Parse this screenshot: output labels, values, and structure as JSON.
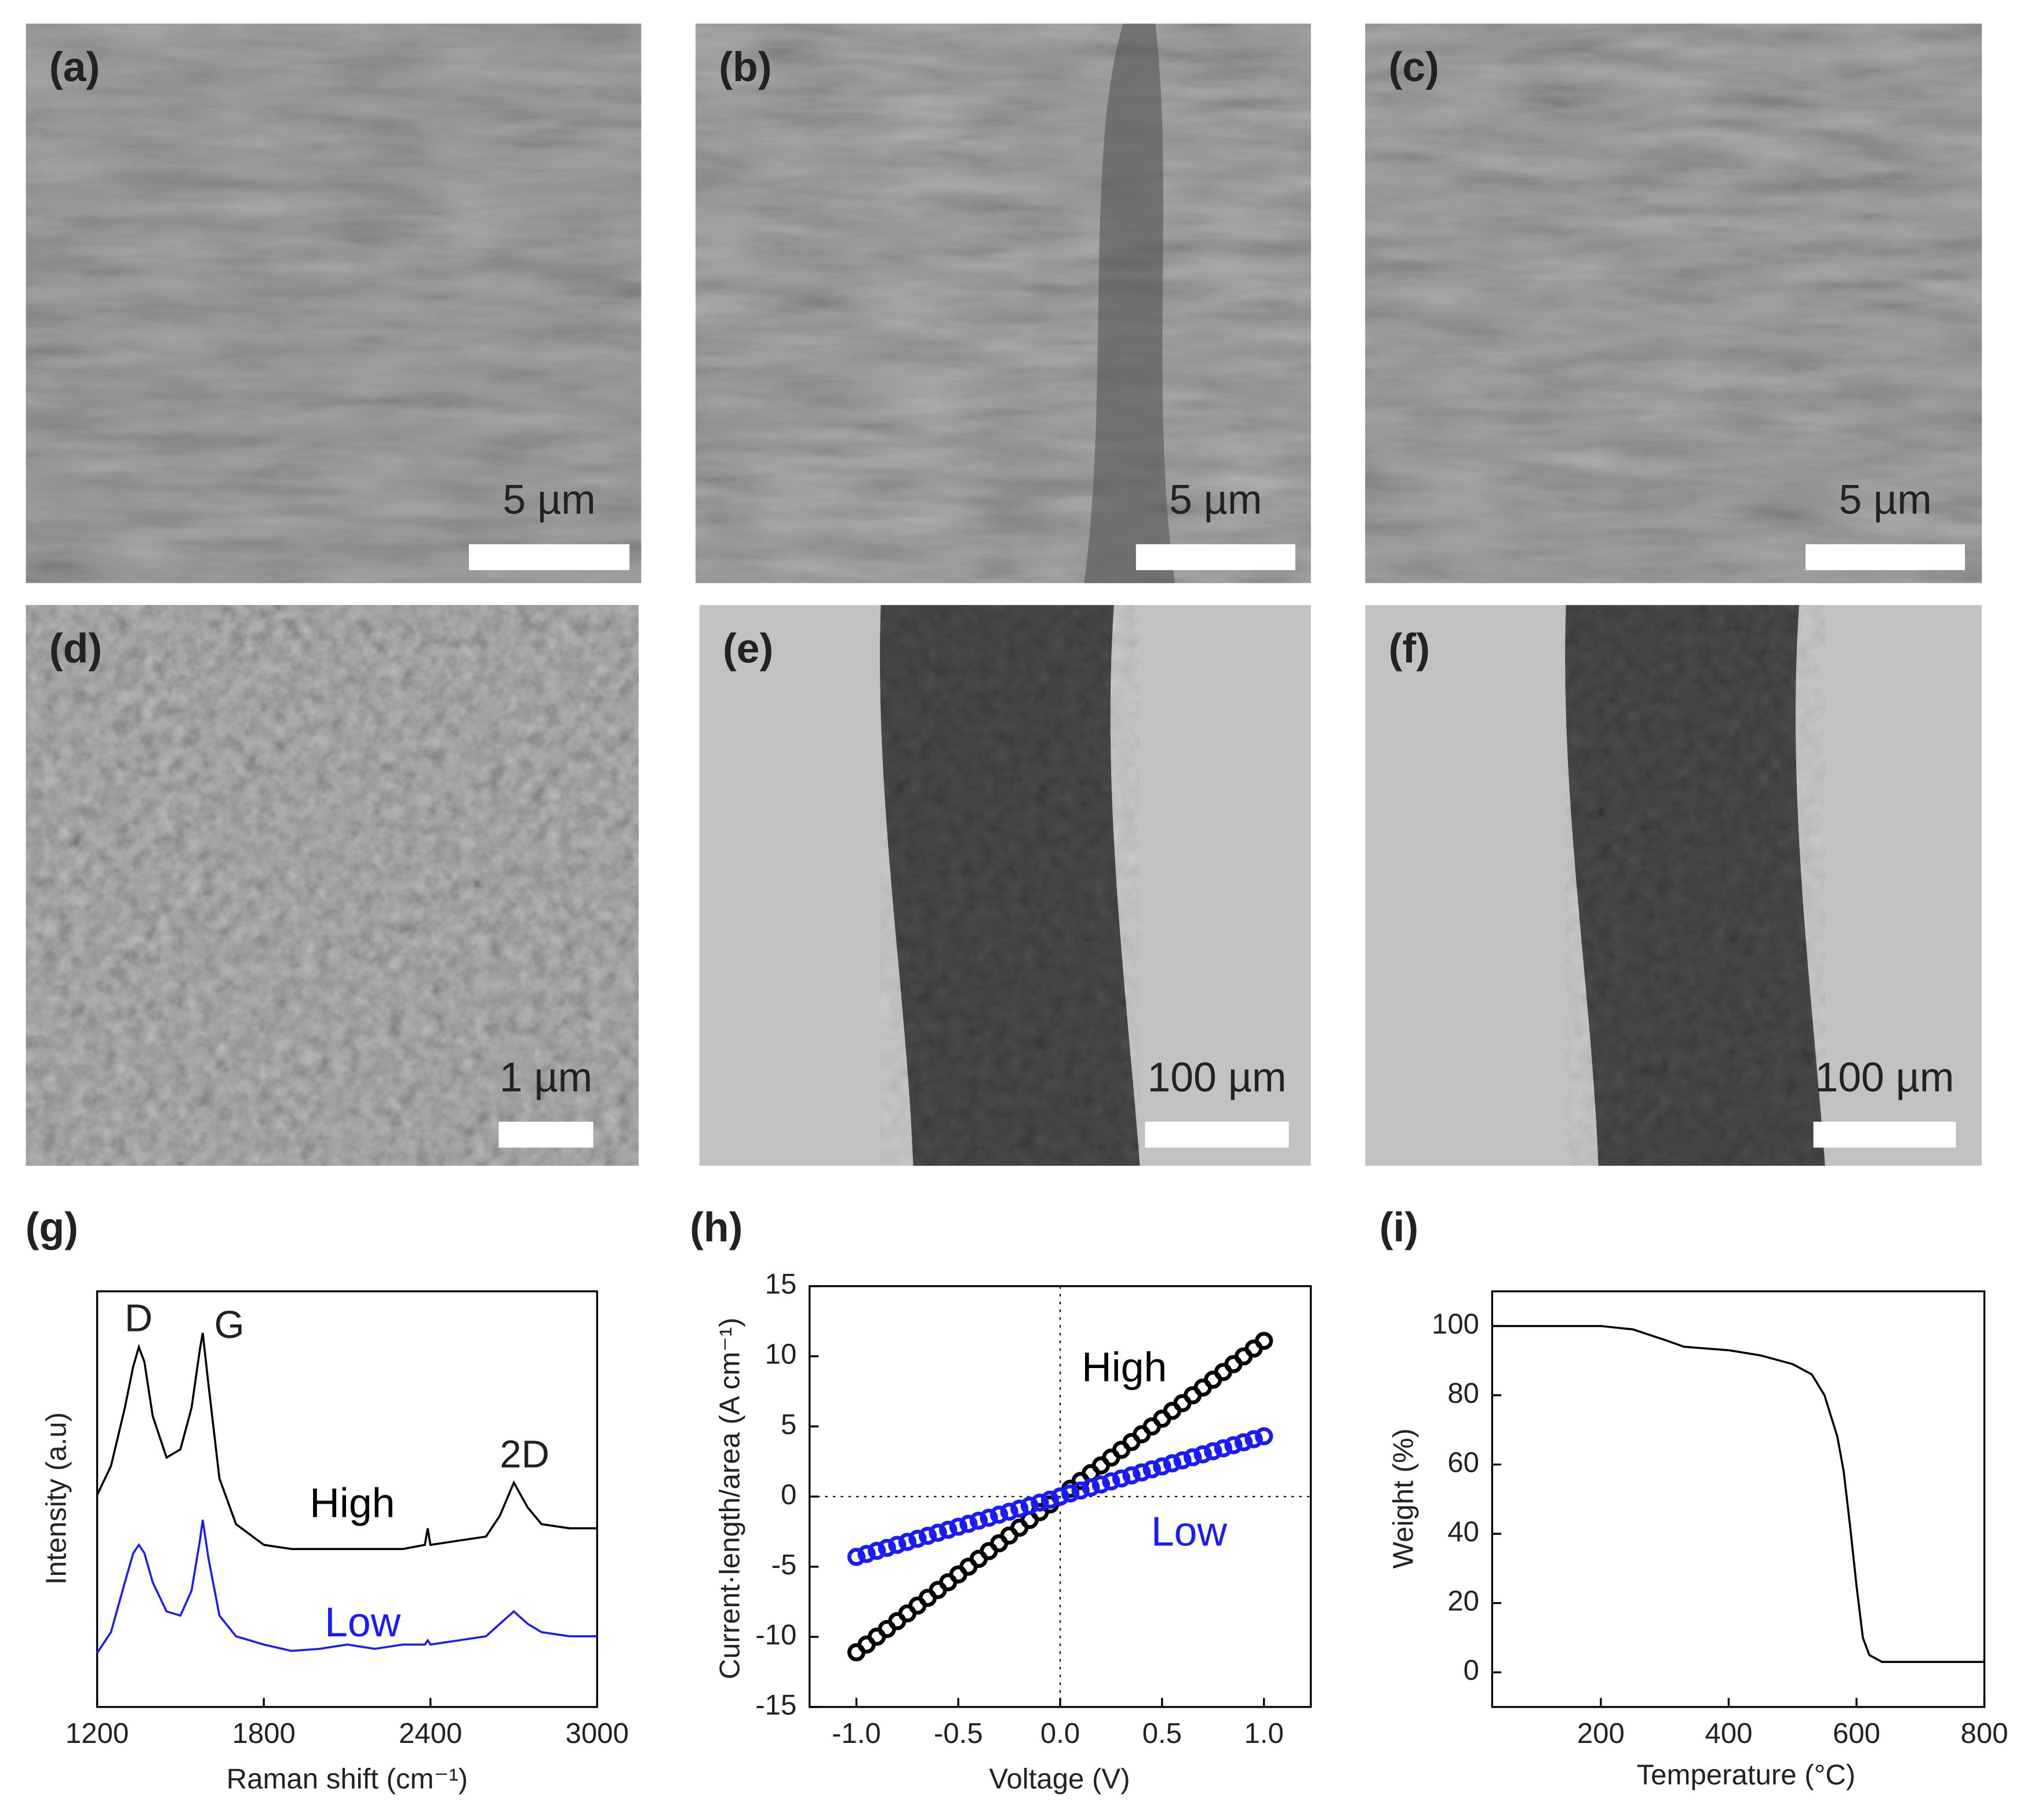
{
  "panels": [
    {
      "label": "(a)",
      "scale_bar": "5 µm"
    },
    {
      "label": "(b)",
      "scale_bar": "5 µm"
    },
    {
      "label": "(c)",
      "scale_bar": "5 µm"
    },
    {
      "label": "(d)",
      "scale_bar": "1 µm"
    },
    {
      "label": "(e)",
      "scale_bar": "100 µm"
    },
    {
      "label": "(f)",
      "scale_bar": "100 µm"
    }
  ],
  "chart_data": [
    {
      "type": "line",
      "panel_label": "(g)",
      "x_label": "Raman shift (cm⁻¹)",
      "y_label": "Intensity (a.u)",
      "annotations": [
        "D",
        "G",
        "2D"
      ],
      "x": [
        1200,
        1250,
        1300,
        1330,
        1350,
        1370,
        1400,
        1450,
        1500,
        1540,
        1570,
        1580,
        1600,
        1640,
        1700,
        1800,
        1900,
        2000,
        2100,
        2200,
        2300,
        2380,
        2390,
        2400,
        2500,
        2600,
        2650,
        2700,
        2750,
        2800,
        2900,
        3000
      ],
      "series": [
        {
          "name": "High",
          "color": "#000000",
          "values": [
            51,
            58,
            72,
            82,
            86.6,
            83,
            70,
            60,
            62,
            72,
            86,
            90,
            78,
            55,
            44,
            39,
            38,
            38,
            38,
            38,
            38,
            39,
            43,
            39,
            40,
            41,
            46,
            54,
            48,
            44,
            43,
            43
          ]
        },
        {
          "name": "Low",
          "color": "#1a1aff",
          "values": [
            13,
            18,
            30,
            37,
            39,
            37,
            30,
            23,
            22,
            28,
            40,
            45,
            36,
            22,
            17,
            15,
            13.5,
            14,
            15,
            14,
            15,
            15,
            16,
            15,
            16,
            17,
            20,
            23,
            20,
            18,
            17,
            17
          ]
        }
      ],
      "xlim": [
        1200,
        3000
      ],
      "xticks": [
        1200,
        1800,
        2400,
        3000
      ],
      "ylim": [
        0,
        100
      ]
    },
    {
      "type": "scatter",
      "panel_label": "(h)",
      "x_label": "Voltage (V)",
      "y_label": "Current·length/area (A cm⁻¹)",
      "x": [
        -1,
        -0.95,
        -0.9,
        -0.85,
        -0.8,
        -0.75,
        -0.7,
        -0.65,
        -0.6,
        -0.55,
        -0.5,
        -0.45,
        -0.4,
        -0.35,
        -0.3,
        -0.25,
        -0.2,
        -0.15,
        -0.1,
        -0.05,
        0,
        0.05,
        0.1,
        0.15,
        0.2,
        0.25,
        0.3,
        0.35,
        0.4,
        0.45,
        0.5,
        0.55,
        0.6,
        0.65,
        0.7,
        0.75,
        0.8,
        0.85,
        0.9,
        0.95,
        1
      ],
      "series": [
        {
          "name": "High",
          "color": "#000000",
          "values": [
            -11.1,
            -10.55,
            -9.99,
            -9.44,
            -8.88,
            -8.33,
            -7.77,
            -7.22,
            -6.66,
            -6.11,
            -5.55,
            -5.0,
            -4.44,
            -3.89,
            -3.33,
            -2.78,
            -2.22,
            -1.67,
            -1.11,
            -0.56,
            0,
            0.56,
            1.11,
            1.67,
            2.22,
            2.78,
            3.33,
            3.89,
            4.44,
            5.0,
            5.55,
            6.11,
            6.66,
            7.22,
            7.77,
            8.33,
            8.88,
            9.44,
            9.99,
            10.55,
            11.1
          ]
        },
        {
          "name": "Low",
          "color": "#1a1aff",
          "values": [
            -4.3,
            -4.09,
            -3.87,
            -3.66,
            -3.44,
            -3.23,
            -3.01,
            -2.8,
            -2.58,
            -2.37,
            -2.15,
            -1.94,
            -1.72,
            -1.51,
            -1.29,
            -1.08,
            -0.86,
            -0.65,
            -0.43,
            -0.22,
            0,
            0.22,
            0.43,
            0.65,
            0.86,
            1.08,
            1.29,
            1.51,
            1.72,
            1.94,
            2.15,
            2.37,
            2.58,
            2.8,
            3.01,
            3.23,
            3.44,
            3.66,
            3.87,
            4.09,
            4.3
          ]
        }
      ],
      "xlim": [
        -1.23,
        1.23
      ],
      "xticks": [
        {
          "value": -1,
          "label": "-1.0"
        },
        {
          "value": -0.5,
          "label": "-0.5"
        },
        {
          "value": 0,
          "label": "0.0"
        },
        {
          "value": 0.5,
          "label": "0.5"
        },
        {
          "value": 1,
          "label": "1.0"
        }
      ],
      "ylim": [
        -15,
        15
      ],
      "yticks": [
        -15,
        -10,
        -5,
        0,
        5,
        10,
        15
      ]
    },
    {
      "type": "line",
      "panel_label": "(i)",
      "x_label": "Temperature (°C)",
      "y_label": "Weight (%)",
      "x": [
        30,
        100,
        200,
        250,
        300,
        330,
        400,
        450,
        500,
        530,
        550,
        570,
        580,
        590,
        600,
        610,
        620,
        640,
        800
      ],
      "series": [
        {
          "color": "#000000",
          "values": [
            100,
            100,
            100,
            99,
            96,
            94,
            93,
            91.5,
            89,
            86,
            80,
            68,
            58,
            42,
            25,
            10,
            5,
            3,
            3
          ]
        }
      ],
      "xlim": [
        30,
        800
      ],
      "xticks": [
        200,
        400,
        600,
        800
      ],
      "ylim": [
        -10,
        110
      ],
      "yticks": [
        0,
        20,
        40,
        60,
        80,
        100
      ]
    }
  ]
}
